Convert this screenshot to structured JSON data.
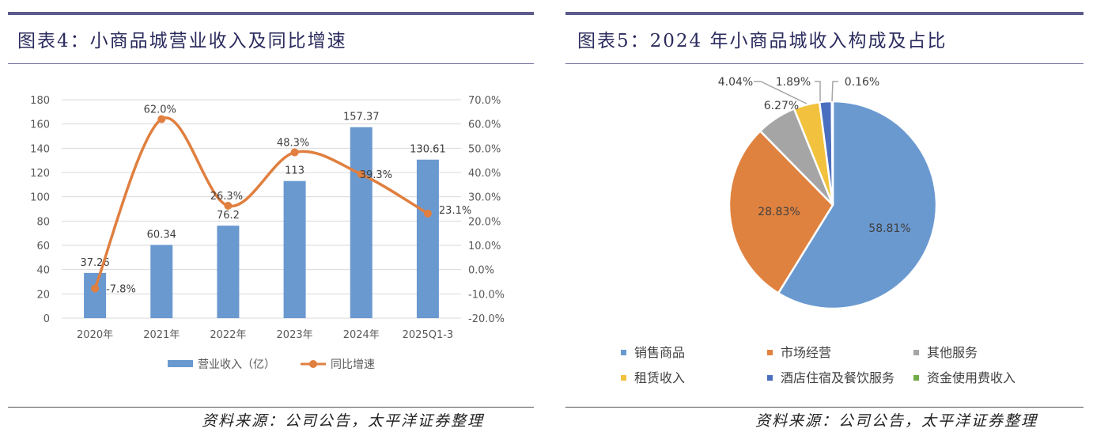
{
  "left": {
    "title": "图表4：小商品城营业收入及同比增速",
    "source": "资料来源：公司公告，太平洋证券整理"
  },
  "right": {
    "title": "图表5：2024 年小商品城收入构成及占比",
    "source": "资料来源：公司公告，太平洋证券整理"
  },
  "chart_data": [
    {
      "type": "bar+line",
      "categories": [
        "2020年",
        "2021年",
        "2022年",
        "2023年",
        "2024年",
        "2025Q1-3"
      ],
      "series": [
        {
          "name": "营业收入（亿）",
          "type": "bar",
          "axis": "left",
          "values": [
            37.26,
            60.34,
            76.2,
            113,
            157.37,
            130.61
          ],
          "labels": [
            "37.26",
            "60.34",
            "76.2",
            "113",
            "157.37",
            "130.61"
          ],
          "color": "#6a99d0"
        },
        {
          "name": "同比增速",
          "type": "line",
          "axis": "right",
          "values": [
            -7.8,
            62.0,
            26.3,
            48.3,
            39.3,
            23.1
          ],
          "labels": [
            "-7.8%",
            "62.0%",
            "26.3%",
            "48.3%",
            "39.3%",
            "23.1%"
          ],
          "color": "#e07f3f"
        }
      ],
      "ylim": [
        0,
        180
      ],
      "yticks": [
        "0",
        "20",
        "40",
        "60",
        "80",
        "100",
        "120",
        "140",
        "160",
        "180"
      ],
      "y2lim": [
        -20,
        70
      ],
      "y2ticks": [
        "-20.0%",
        "-10.0%",
        "0.0%",
        "10.0%",
        "20.0%",
        "30.0%",
        "40.0%",
        "50.0%",
        "60.0%",
        "70.0%"
      ],
      "grid": true,
      "legend": "bottom"
    },
    {
      "type": "pie",
      "labels": [
        "销售商品",
        "市场经营",
        "其他服务",
        "租赁收入",
        "酒店住宿及餐饮服务",
        "资金使用费收入"
      ],
      "values": [
        58.81,
        28.83,
        6.27,
        4.04,
        1.89,
        0.16
      ],
      "value_labels": [
        "58.81%",
        "28.83%",
        "6.27%",
        "4.04%",
        "1.89%",
        "0.16%"
      ],
      "colors": [
        "#6a99d0",
        "#e0823f",
        "#a5a5a5",
        "#f2c23e",
        "#4a6fbe",
        "#70ad47"
      ],
      "legend": "bottom"
    }
  ]
}
